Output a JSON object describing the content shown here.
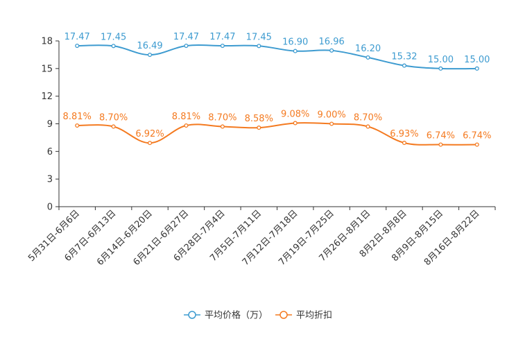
{
  "chart_data": {
    "type": "line",
    "title": "",
    "xlabel": "",
    "ylabel": "",
    "ylim": [
      0,
      18
    ],
    "yticks": [
      0,
      3,
      6,
      9,
      12,
      15,
      18
    ],
    "categories": [
      "5月31日-6月6日",
      "6月7日-6月13日",
      "6月14日-6月20日",
      "6月21日-6月27日",
      "6月28日-7月4日",
      "7月5日-7月11日",
      "7月12日-7月18日",
      "7月19日-7月25日",
      "7月26日-8月1日",
      "8月2日-8月8日",
      "8月9日-8月15日",
      "8月16日-8月22日"
    ],
    "series": [
      {
        "name": "平均价格（万）",
        "color": "#3d9bd0",
        "values": [
          17.47,
          17.45,
          16.49,
          17.47,
          17.47,
          17.45,
          16.9,
          16.96,
          16.2,
          15.32,
          15.0,
          15.0
        ],
        "labels": [
          "17.47",
          "17.45",
          "16.49",
          "17.47",
          "17.47",
          "17.45",
          "16.90",
          "16.96",
          "16.20",
          "15.32",
          "15.00",
          "15.00"
        ]
      },
      {
        "name": "平均折扣",
        "color": "#f47a20",
        "values": [
          8.81,
          8.7,
          6.92,
          8.81,
          8.7,
          8.58,
          9.08,
          9.0,
          8.7,
          6.93,
          6.74,
          6.74
        ],
        "labels": [
          "8.81%",
          "8.70%",
          "6.92%",
          "8.81%",
          "8.70%",
          "8.58%",
          "9.08%",
          "9.00%",
          "8.70%",
          "6.93%",
          "6.74%",
          "6.74%"
        ]
      }
    ],
    "legend_position": "bottom-center",
    "grid": false
  }
}
